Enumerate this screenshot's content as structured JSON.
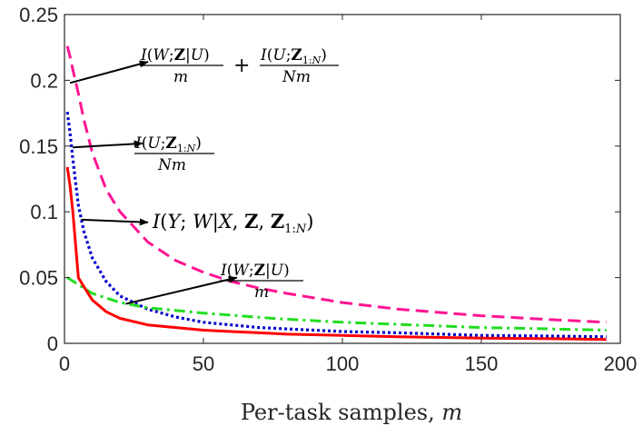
{
  "chart_data": {
    "type": "line",
    "title": "",
    "xlabel_text": "Per-task samples, ",
    "xlabel_var": "m",
    "ylabel": "",
    "xlim": [
      0,
      200
    ],
    "ylim": [
      0,
      0.25
    ],
    "xticks": [
      0,
      50,
      100,
      150,
      200
    ],
    "yticks": [
      0,
      0.05,
      0.1,
      0.15,
      0.2,
      0.25
    ],
    "xtick_labels": [
      "0",
      "50",
      "100",
      "150",
      "200"
    ],
    "ytick_labels": [
      "0",
      "0.05",
      "0.1",
      "0.15",
      "0.2",
      "0.25"
    ],
    "grid": false,
    "series": [
      {
        "id": "magenta",
        "color": "#ff1493",
        "dash": "dashed",
        "x": [
          1,
          2,
          3,
          5,
          7,
          10,
          15,
          20,
          30,
          40,
          50,
          60,
          70,
          80,
          100,
          120,
          150,
          175,
          195
        ],
        "y": [
          0.226,
          0.218,
          0.208,
          0.19,
          0.17,
          0.145,
          0.117,
          0.1,
          0.077,
          0.063,
          0.054,
          0.047,
          0.042,
          0.038,
          0.031,
          0.026,
          0.021,
          0.018,
          0.016
        ]
      },
      {
        "id": "blue",
        "color": "#0000cd",
        "dash": "dotted",
        "x": [
          1,
          2,
          3,
          5,
          7,
          10,
          15,
          20,
          30,
          40,
          50,
          60,
          70,
          80,
          100,
          120,
          150,
          175,
          195
        ],
        "y": [
          0.176,
          0.16,
          0.14,
          0.105,
          0.085,
          0.065,
          0.047,
          0.036,
          0.026,
          0.02,
          0.016,
          0.014,
          0.012,
          0.011,
          0.009,
          0.008,
          0.006,
          0.0055,
          0.005
        ]
      },
      {
        "id": "green",
        "color": "#22dd22",
        "dash": "dashdot",
        "x": [
          1,
          10,
          20,
          30,
          50,
          75,
          100,
          125,
          150,
          175,
          195
        ],
        "y": [
          0.05,
          0.038,
          0.031,
          0.027,
          0.023,
          0.019,
          0.016,
          0.014,
          0.012,
          0.011,
          0.01
        ]
      },
      {
        "id": "red",
        "color": "#ff0000",
        "dash": "solid",
        "x": [
          1,
          2,
          3,
          5,
          7,
          10,
          15,
          20,
          30,
          40,
          50,
          60,
          70,
          80,
          100,
          120,
          150,
          175,
          195
        ],
        "y": [
          0.134,
          0.12,
          0.1,
          0.05,
          0.043,
          0.033,
          0.024,
          0.019,
          0.014,
          0.012,
          0.01,
          0.009,
          0.008,
          0.007,
          0.006,
          0.005,
          0.004,
          0.0035,
          0.003
        ]
      }
    ],
    "annotations": [
      {
        "id": "annot-magenta",
        "arrow_from": [
          2,
          0.198
        ],
        "arrow_to": [
          30,
          0.214
        ]
      },
      {
        "id": "annot-blue",
        "arrow_from": [
          3,
          0.149
        ],
        "arrow_to": [
          28,
          0.152
        ]
      },
      {
        "id": "annot-red",
        "arrow_from": [
          6,
          0.094
        ],
        "arrow_to": [
          30,
          0.092
        ]
      },
      {
        "id": "annot-green",
        "arrow_from": [
          22,
          0.03
        ],
        "arrow_to": [
          62,
          0.05
        ]
      }
    ]
  }
}
